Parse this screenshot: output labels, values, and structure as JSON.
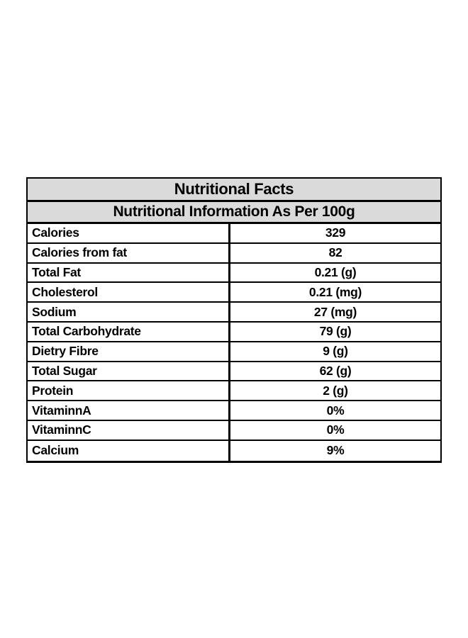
{
  "table": {
    "title": "Nutritional Facts",
    "subtitle": "Nutritional Information As Per 100g",
    "header_bg": "#dadada",
    "border_color": "#000000",
    "text_color": "#000000",
    "rows": [
      {
        "label": "Calories",
        "value": "329"
      },
      {
        "label": "Calories from fat",
        "value": "82"
      },
      {
        "label": "Total Fat",
        "value": "0.21 (g)"
      },
      {
        "label": "Cholesterol",
        "value": "0.21 (mg)"
      },
      {
        "label": "Sodium",
        "value": "27 (mg)"
      },
      {
        "label": "Total Carbohydrate",
        "value": "79 (g)"
      },
      {
        "label": "Dietry Fibre",
        "value": "9 (g)"
      },
      {
        "label": "Total Sugar",
        "value": "62 (g)"
      },
      {
        "label": "Protein",
        "value": "2 (g)"
      },
      {
        "label": "VitaminnA",
        "value": "0%"
      },
      {
        "label": "VitaminnC",
        "value": "0%"
      },
      {
        "label": "Calcium",
        "value": "9%"
      }
    ]
  }
}
